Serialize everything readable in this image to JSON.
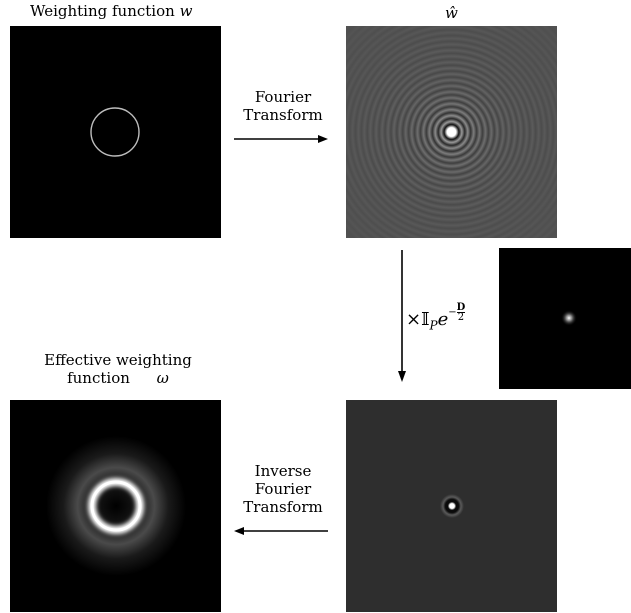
{
  "labels": {
    "weighting_title": "Weighting function",
    "weighting_symbol": "w",
    "what_symbol": "ŵ",
    "fourier_line1": "Fourier",
    "fourier_line2": "Transform",
    "multiply_prefix": "×𝕀",
    "multiply_sub": "P",
    "multiply_base": "e",
    "multiply_exp_num": "D",
    "multiply_exp_den": "2",
    "multiply_exp_sign": "−",
    "effective_line1": "Effective weighting",
    "effective_line2": "function",
    "effective_symbol": "ω",
    "inverse_line1": "Inverse",
    "inverse_line2": "Fourier",
    "inverse_line3": "Transform"
  },
  "panels": {
    "weighting": {
      "content": "thin circle",
      "ring_color": "#bdbdbd"
    },
    "fourier": {
      "content": "concentric ripples with bright center"
    },
    "gaussian": {
      "content": "small gaussian spot"
    },
    "product": {
      "content": "small bright center with faint ring"
    },
    "effective": {
      "content": "bright blurred ring"
    }
  },
  "icons": [
    "arrow-right-icon",
    "arrow-down-icon",
    "arrow-left-icon"
  ]
}
